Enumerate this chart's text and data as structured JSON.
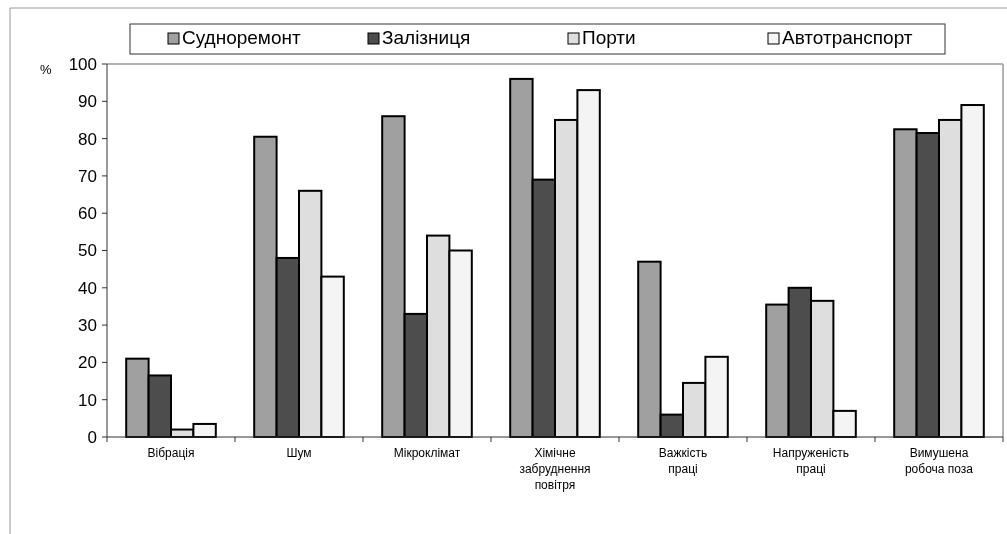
{
  "chart_data": {
    "type": "bar",
    "ylabel": "%",
    "categories": [
      "Вібрація",
      "Шум",
      "Мікроклімат",
      "Хімічне забруднення повітря",
      "Важкість праці",
      "Напруженість праці",
      "Вимушена робоча поза"
    ],
    "series": [
      {
        "name": "Судноремонт",
        "color": "#a0a0a0",
        "values": [
          21,
          80.5,
          86,
          96,
          47,
          35.5,
          82.5
        ]
      },
      {
        "name": "Залізниця",
        "color": "#4d4d4d",
        "values": [
          16.5,
          48,
          33,
          69,
          6,
          40,
          81.5
        ]
      },
      {
        "name": "Порти",
        "color": "#dedede",
        "values": [
          2,
          66,
          54,
          85,
          14.5,
          36.5,
          85
        ]
      },
      {
        "name": "Автотранспорт",
        "color": "#f4f4f4",
        "values": [
          3.5,
          43,
          50,
          93,
          21.5,
          7,
          89
        ]
      }
    ],
    "ylim": [
      0,
      100
    ],
    "yticks": [
      0,
      10,
      20,
      30,
      40,
      50,
      60,
      70,
      80,
      90,
      100
    ],
    "grid": false,
    "legend": "top"
  }
}
